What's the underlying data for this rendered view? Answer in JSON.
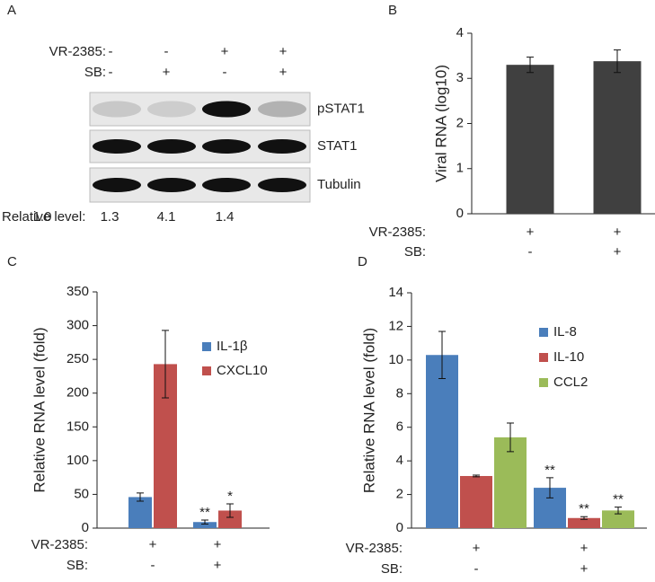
{
  "chart_data": [
    {
      "type": "blot",
      "panel": "A",
      "conditions": [
        {
          "name": "VR-2385:",
          "values": [
            "-",
            "-",
            "+",
            "+"
          ]
        },
        {
          "name": "SB:",
          "values": [
            "-",
            "+",
            "-",
            "+"
          ]
        }
      ],
      "bands": [
        "pSTAT1",
        "STAT1",
        "Tubulin"
      ],
      "level_label": "Relative level:",
      "values": [
        1.0,
        1.3,
        4.1,
        1.4
      ],
      "value_labels": [
        "1.0",
        "1.3",
        "4.1",
        "1.4"
      ]
    },
    {
      "type": "bar",
      "panel": "B",
      "ylabel": "Viral RNA (log10)",
      "conditions": [
        {
          "name": "VR-2385:",
          "values": [
            "+",
            "+"
          ]
        },
        {
          "name": "SB:",
          "values": [
            "-",
            "+"
          ]
        }
      ],
      "series": [
        {
          "color": "#404040",
          "values": [
            3.3,
            3.38
          ],
          "errors": [
            0.17,
            0.25
          ]
        }
      ],
      "ylim": [
        0,
        4
      ],
      "yticks": [
        0,
        1,
        2,
        3,
        4
      ]
    },
    {
      "type": "bar",
      "panel": "C",
      "ylabel": "Relative RNA level (fold)",
      "conditions": [
        {
          "name": "VR-2385:",
          "values": [
            "+",
            "+"
          ]
        },
        {
          "name": "SB:",
          "values": [
            "-",
            "+"
          ]
        }
      ],
      "series": [
        {
          "name": "IL-1β",
          "color": "#4a7ebb",
          "values": [
            46,
            9
          ],
          "errors": [
            6,
            3
          ],
          "annotations": [
            null,
            "**"
          ]
        },
        {
          "name": "CXCL10",
          "color": "#c0504d",
          "values": [
            243,
            26
          ],
          "errors": [
            50,
            10
          ],
          "annotations": [
            null,
            "*"
          ]
        }
      ],
      "ylim": [
        0,
        350
      ],
      "yticks": [
        0,
        50,
        100,
        150,
        200,
        250,
        300,
        350
      ]
    },
    {
      "type": "bar",
      "panel": "D",
      "ylabel": "Relative RNA level (fold)",
      "conditions": [
        {
          "name": "VR-2385:",
          "values": [
            "+",
            "+"
          ]
        },
        {
          "name": "SB:",
          "values": [
            "-",
            "+"
          ]
        }
      ],
      "series": [
        {
          "name": "IL-8",
          "color": "#4a7ebb",
          "values": [
            10.3,
            2.4
          ],
          "errors": [
            1.4,
            0.6
          ],
          "annotations": [
            null,
            "**"
          ]
        },
        {
          "name": "IL-10",
          "color": "#c0504d",
          "values": [
            3.1,
            0.6
          ],
          "errors": [
            0.05,
            0.08
          ],
          "annotations": [
            null,
            "**"
          ]
        },
        {
          "name": "CCL2",
          "color": "#9bbb59",
          "values": [
            5.4,
            1.05
          ],
          "errors": [
            0.85,
            0.2
          ],
          "annotations": [
            null,
            "**"
          ]
        }
      ],
      "ylim": [
        0,
        14
      ],
      "yticks": [
        0,
        2,
        4,
        6,
        8,
        10,
        12,
        14
      ]
    }
  ]
}
